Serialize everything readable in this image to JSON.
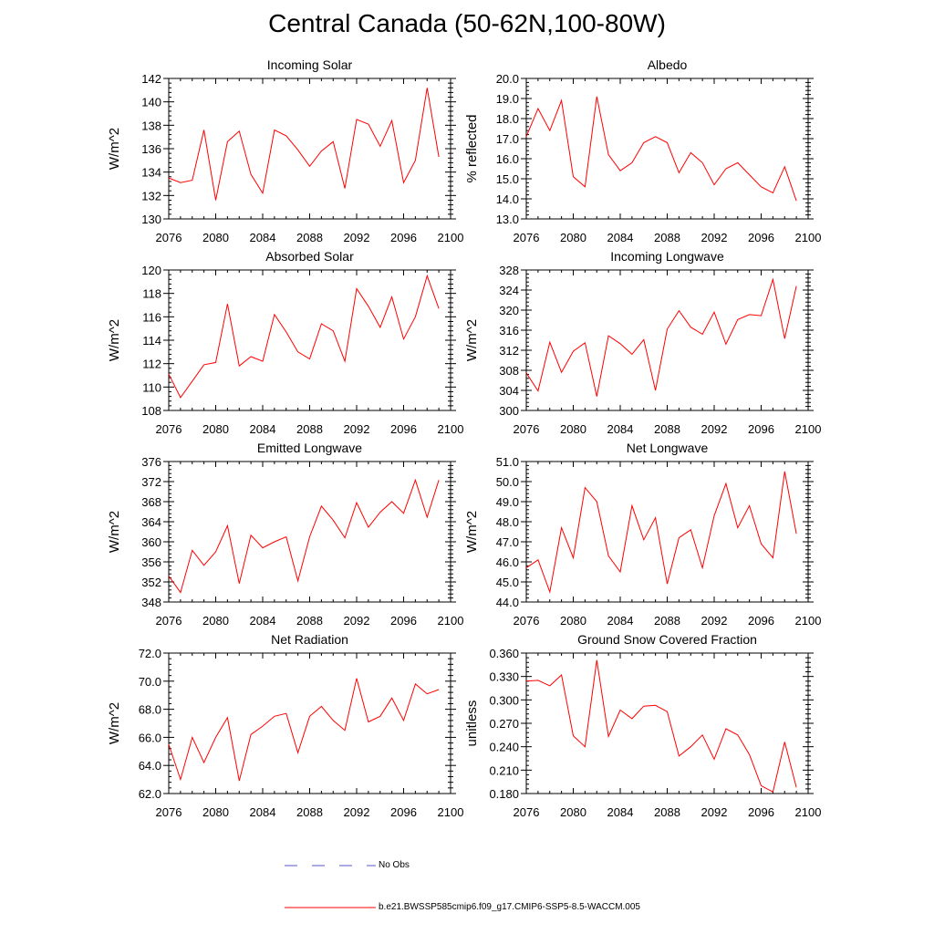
{
  "title": "Central Canada (50-62N,100-80W)",
  "colors": {
    "series": "#ff0000",
    "obs": "#5555cc",
    "axis": "#000000"
  },
  "legend": {
    "obs_label": "No Obs",
    "model_label": "b.e21.BWSSP585cmip6.f09_g17.CMIP6-SSP5-8.5-WACCM.005"
  },
  "chart_data": [
    {
      "type": "line",
      "title": "Incoming Solar",
      "xlabel": "",
      "ylabel": "W/m^2",
      "xlim": [
        2076,
        2100
      ],
      "ylim": [
        130,
        142
      ],
      "xticks": [
        2076,
        2080,
        2084,
        2088,
        2092,
        2096,
        2100
      ],
      "yticks": [
        130,
        132,
        134,
        136,
        138,
        140,
        142
      ],
      "ytick_labels": [
        "130",
        "132",
        "134",
        "136",
        "138",
        "140",
        "142"
      ],
      "x": [
        2076,
        2077,
        2078,
        2079,
        2080,
        2081,
        2082,
        2083,
        2084,
        2085,
        2086,
        2087,
        2088,
        2089,
        2090,
        2091,
        2092,
        2093,
        2094,
        2095,
        2096,
        2097,
        2098,
        2099
      ],
      "values": [
        133.5,
        133.1,
        133.3,
        137.6,
        131.6,
        136.6,
        137.5,
        133.8,
        132.2,
        137.6,
        137.1,
        135.9,
        134.5,
        135.8,
        136.6,
        132.6,
        138.5,
        138.1,
        136.2,
        138.4,
        133.1,
        135.0,
        141.2,
        135.3
      ]
    },
    {
      "type": "line",
      "title": "Albedo",
      "xlabel": "",
      "ylabel": "% reflected",
      "xlim": [
        2076,
        2100
      ],
      "ylim": [
        13.0,
        20.0
      ],
      "xticks": [
        2076,
        2080,
        2084,
        2088,
        2092,
        2096,
        2100
      ],
      "yticks": [
        13,
        14,
        15,
        16,
        17,
        18,
        19,
        20
      ],
      "ytick_labels": [
        "13.0",
        "14.0",
        "15.0",
        "16.0",
        "17.0",
        "18.0",
        "19.0",
        "20.0"
      ],
      "x": [
        2076,
        2077,
        2078,
        2079,
        2080,
        2081,
        2082,
        2083,
        2084,
        2085,
        2086,
        2087,
        2088,
        2089,
        2090,
        2091,
        2092,
        2093,
        2094,
        2095,
        2096,
        2097,
        2098,
        2099
      ],
      "values": [
        17.1,
        18.5,
        17.4,
        18.9,
        15.1,
        14.6,
        19.1,
        16.2,
        15.4,
        15.8,
        16.8,
        17.1,
        16.8,
        15.3,
        16.3,
        15.8,
        14.7,
        15.5,
        15.8,
        15.2,
        14.6,
        14.3,
        15.6,
        13.9
      ]
    },
    {
      "type": "line",
      "title": "Absorbed Solar",
      "xlabel": "",
      "ylabel": "W/m^2",
      "xlim": [
        2076,
        2100
      ],
      "ylim": [
        108,
        120
      ],
      "xticks": [
        2076,
        2080,
        2084,
        2088,
        2092,
        2096,
        2100
      ],
      "yticks": [
        108,
        110,
        112,
        114,
        116,
        118,
        120
      ],
      "ytick_labels": [
        "108",
        "110",
        "112",
        "114",
        "116",
        "118",
        "120"
      ],
      "x": [
        2076,
        2077,
        2078,
        2079,
        2080,
        2081,
        2082,
        2083,
        2084,
        2085,
        2086,
        2087,
        2088,
        2089,
        2090,
        2091,
        2092,
        2093,
        2094,
        2095,
        2096,
        2097,
        2098,
        2099
      ],
      "values": [
        111.1,
        109.1,
        110.5,
        111.9,
        112.1,
        117.1,
        111.8,
        112.6,
        112.2,
        116.2,
        114.7,
        113.0,
        112.4,
        115.4,
        114.8,
        112.2,
        118.4,
        116.9,
        115.1,
        117.7,
        114.1,
        116.0,
        119.5,
        116.7
      ]
    },
    {
      "type": "line",
      "title": "Incoming Longwave",
      "xlabel": "",
      "ylabel": "W/m^2",
      "xlim": [
        2076,
        2100
      ],
      "ylim": [
        300,
        328
      ],
      "xticks": [
        2076,
        2080,
        2084,
        2088,
        2092,
        2096,
        2100
      ],
      "yticks": [
        300,
        304,
        308,
        312,
        316,
        320,
        324,
        328
      ],
      "ytick_labels": [
        "300",
        "304",
        "308",
        "312",
        "316",
        "320",
        "324",
        "328"
      ],
      "x": [
        2076,
        2077,
        2078,
        2079,
        2080,
        2081,
        2082,
        2083,
        2084,
        2085,
        2086,
        2087,
        2088,
        2089,
        2090,
        2091,
        2092,
        2093,
        2094,
        2095,
        2096,
        2097,
        2098,
        2099
      ],
      "values": [
        307.5,
        303.9,
        313.6,
        307.6,
        311.8,
        313.5,
        302.8,
        314.9,
        313.3,
        311.2,
        314.1,
        304.0,
        316.2,
        319.9,
        316.6,
        315.2,
        319.6,
        313.2,
        318.1,
        319.1,
        318.9,
        326.1,
        314.3,
        324.8
      ]
    },
    {
      "type": "line",
      "title": "Emitted Longwave",
      "xlabel": "",
      "ylabel": "W/m^2",
      "xlim": [
        2076,
        2100
      ],
      "ylim": [
        348,
        376
      ],
      "xticks": [
        2076,
        2080,
        2084,
        2088,
        2092,
        2096,
        2100
      ],
      "yticks": [
        348,
        352,
        356,
        360,
        364,
        368,
        372,
        376
      ],
      "ytick_labels": [
        "348",
        "352",
        "356",
        "360",
        "364",
        "368",
        "372",
        "376"
      ],
      "x": [
        2076,
        2077,
        2078,
        2079,
        2080,
        2081,
        2082,
        2083,
        2084,
        2085,
        2086,
        2087,
        2088,
        2089,
        2090,
        2091,
        2092,
        2093,
        2094,
        2095,
        2096,
        2097,
        2098,
        2099
      ],
      "values": [
        353.2,
        349.9,
        358.3,
        355.3,
        358.0,
        363.2,
        351.7,
        361.3,
        358.8,
        360.0,
        361.0,
        352.2,
        361.0,
        367.1,
        364.3,
        360.8,
        367.8,
        362.9,
        365.9,
        368.0,
        365.7,
        372.3,
        364.9,
        372.3
      ]
    },
    {
      "type": "line",
      "title": "Net Longwave",
      "xlabel": "",
      "ylabel": "W/m^2",
      "xlim": [
        2076,
        2100
      ],
      "ylim": [
        44.0,
        51.0
      ],
      "xticks": [
        2076,
        2080,
        2084,
        2088,
        2092,
        2096,
        2100
      ],
      "yticks": [
        44,
        45,
        46,
        47,
        48,
        49,
        50,
        51
      ],
      "ytick_labels": [
        "44.0",
        "45.0",
        "46.0",
        "47.0",
        "48.0",
        "49.0",
        "50.0",
        "51.0"
      ],
      "x": [
        2076,
        2077,
        2078,
        2079,
        2080,
        2081,
        2082,
        2083,
        2084,
        2085,
        2086,
        2087,
        2088,
        2089,
        2090,
        2091,
        2092,
        2093,
        2094,
        2095,
        2096,
        2097,
        2098,
        2099
      ],
      "values": [
        45.7,
        46.1,
        44.5,
        47.7,
        46.2,
        49.7,
        49.0,
        46.3,
        45.5,
        48.8,
        47.1,
        48.2,
        44.9,
        47.2,
        47.6,
        45.7,
        48.3,
        49.9,
        47.7,
        48.8,
        46.9,
        46.2,
        50.5,
        47.4
      ]
    },
    {
      "type": "line",
      "title": "Net Radiation",
      "xlabel": "",
      "ylabel": "W/m^2",
      "xlim": [
        2076,
        2100
      ],
      "ylim": [
        62.0,
        72.0
      ],
      "xticks": [
        2076,
        2080,
        2084,
        2088,
        2092,
        2096,
        2100
      ],
      "yticks": [
        62,
        64,
        66,
        68,
        70,
        72
      ],
      "ytick_labels": [
        "62.0",
        "64.0",
        "66.0",
        "68.0",
        "70.0",
        "72.0"
      ],
      "x": [
        2076,
        2077,
        2078,
        2079,
        2080,
        2081,
        2082,
        2083,
        2084,
        2085,
        2086,
        2087,
        2088,
        2089,
        2090,
        2091,
        2092,
        2093,
        2094,
        2095,
        2096,
        2097,
        2098,
        2099
      ],
      "values": [
        65.5,
        63.0,
        66.0,
        64.2,
        66.0,
        67.4,
        62.9,
        66.2,
        66.8,
        67.5,
        67.7,
        64.9,
        67.5,
        68.2,
        67.2,
        66.5,
        70.2,
        67.1,
        67.5,
        68.8,
        67.2,
        69.8,
        69.1,
        69.4
      ]
    },
    {
      "type": "line",
      "title": "Ground Snow Covered Fraction",
      "xlabel": "",
      "ylabel": "unitless",
      "xlim": [
        2076,
        2100
      ],
      "ylim": [
        0.18,
        0.36
      ],
      "xticks": [
        2076,
        2080,
        2084,
        2088,
        2092,
        2096,
        2100
      ],
      "yticks": [
        0.18,
        0.21,
        0.24,
        0.27,
        0.3,
        0.33,
        0.36
      ],
      "ytick_labels": [
        "0.180",
        "0.210",
        "0.240",
        "0.270",
        "0.300",
        "0.330",
        "0.360"
      ],
      "x": [
        2076,
        2077,
        2078,
        2079,
        2080,
        2081,
        2082,
        2083,
        2084,
        2085,
        2086,
        2087,
        2088,
        2089,
        2090,
        2091,
        2092,
        2093,
        2094,
        2095,
        2096,
        2097,
        2098,
        2099
      ],
      "values": [
        0.324,
        0.325,
        0.318,
        0.332,
        0.254,
        0.24,
        0.351,
        0.253,
        0.287,
        0.276,
        0.292,
        0.293,
        0.285,
        0.228,
        0.24,
        0.255,
        0.224,
        0.263,
        0.255,
        0.23,
        0.19,
        0.182,
        0.246,
        0.188
      ]
    }
  ]
}
